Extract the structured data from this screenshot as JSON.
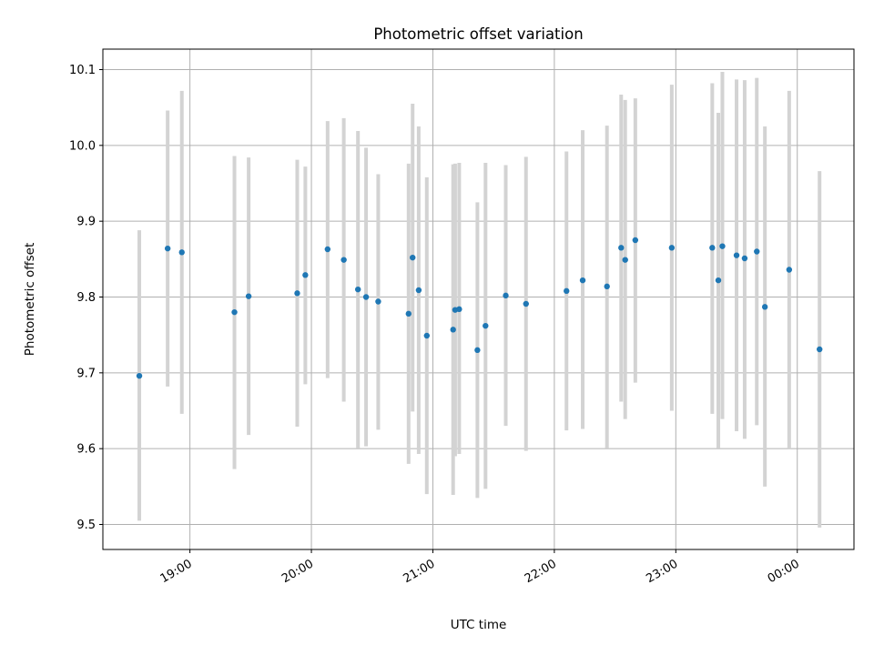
{
  "chart_data": {
    "type": "scatter",
    "title": "Photometric offset variation",
    "xlabel": "UTC time",
    "ylabel": "Photometric offset",
    "x_unit": "UTC time (HH:MM)",
    "xlim": [
      "18:17",
      "24:28"
    ],
    "ylim": [
      9.467,
      10.127
    ],
    "x_ticks": [
      {
        "t": "19:00",
        "label": "19:00"
      },
      {
        "t": "20:00",
        "label": "20:00"
      },
      {
        "t": "21:00",
        "label": "21:00"
      },
      {
        "t": "22:00",
        "label": "22:00"
      },
      {
        "t": "23:00",
        "label": "23:00"
      },
      {
        "t": "24:00",
        "label": "00:00"
      }
    ],
    "y_ticks": [
      9.5,
      9.6,
      9.7,
      9.8,
      9.9,
      10.0,
      10.1
    ],
    "y_tick_labels": [
      "9.5",
      "9.6",
      "9.7",
      "9.8",
      "9.9",
      "10.0",
      "10.1"
    ],
    "grid": true,
    "marker_color": "#1f77b4",
    "errorbar_color": "#d3d3d3",
    "points": [
      {
        "t": "18:35",
        "y": 9.696,
        "ylo": 9.505,
        "yhi": 9.888
      },
      {
        "t": "18:49",
        "y": 9.864,
        "ylo": 9.682,
        "yhi": 10.046
      },
      {
        "t": "18:56",
        "y": 9.859,
        "ylo": 9.646,
        "yhi": 10.072
      },
      {
        "t": "19:22",
        "y": 9.78,
        "ylo": 9.573,
        "yhi": 9.986
      },
      {
        "t": "19:29",
        "y": 9.801,
        "ylo": 9.618,
        "yhi": 9.984
      },
      {
        "t": "19:53",
        "y": 9.805,
        "ylo": 9.629,
        "yhi": 9.981
      },
      {
        "t": "19:57",
        "y": 9.829,
        "ylo": 9.685,
        "yhi": 9.972
      },
      {
        "t": "20:08",
        "y": 9.863,
        "ylo": 9.693,
        "yhi": 10.032
      },
      {
        "t": "20:16",
        "y": 9.849,
        "ylo": 9.662,
        "yhi": 10.036
      },
      {
        "t": "20:23",
        "y": 9.81,
        "ylo": 9.601,
        "yhi": 10.019
      },
      {
        "t": "20:27",
        "y": 9.8,
        "ylo": 9.603,
        "yhi": 9.997
      },
      {
        "t": "20:33",
        "y": 9.794,
        "ylo": 9.625,
        "yhi": 9.962
      },
      {
        "t": "20:48",
        "y": 9.778,
        "ylo": 9.58,
        "yhi": 9.976
      },
      {
        "t": "20:50",
        "y": 9.852,
        "ylo": 9.649,
        "yhi": 10.055
      },
      {
        "t": "20:53",
        "y": 9.809,
        "ylo": 9.593,
        "yhi": 10.025
      },
      {
        "t": "20:57",
        "y": 9.749,
        "ylo": 9.54,
        "yhi": 9.958
      },
      {
        "t": "21:10",
        "y": 9.757,
        "ylo": 9.539,
        "yhi": 9.975
      },
      {
        "t": "21:11",
        "y": 9.783,
        "ylo": 9.59,
        "yhi": 9.976
      },
      {
        "t": "21:13",
        "y": 9.784,
        "ylo": 9.593,
        "yhi": 9.977
      },
      {
        "t": "21:22",
        "y": 9.73,
        "ylo": 9.535,
        "yhi": 9.925
      },
      {
        "t": "21:26",
        "y": 9.762,
        "ylo": 9.547,
        "yhi": 9.977
      },
      {
        "t": "21:36",
        "y": 9.802,
        "ylo": 9.63,
        "yhi": 9.974
      },
      {
        "t": "21:46",
        "y": 9.791,
        "ylo": 9.597,
        "yhi": 9.985
      },
      {
        "t": "22:06",
        "y": 9.808,
        "ylo": 9.624,
        "yhi": 9.992
      },
      {
        "t": "22:14",
        "y": 9.822,
        "ylo": 9.626,
        "yhi": 10.02
      },
      {
        "t": "22:26",
        "y": 9.814,
        "ylo": 9.601,
        "yhi": 10.026
      },
      {
        "t": "22:33",
        "y": 9.865,
        "ylo": 9.662,
        "yhi": 10.067
      },
      {
        "t": "22:35",
        "y": 9.849,
        "ylo": 9.639,
        "yhi": 10.06
      },
      {
        "t": "22:40",
        "y": 9.875,
        "ylo": 9.687,
        "yhi": 10.062
      },
      {
        "t": "22:58",
        "y": 9.865,
        "ylo": 9.65,
        "yhi": 10.08
      },
      {
        "t": "23:18",
        "y": 9.865,
        "ylo": 9.646,
        "yhi": 10.082
      },
      {
        "t": "23:21",
        "y": 9.822,
        "ylo": 9.601,
        "yhi": 10.043
      },
      {
        "t": "23:23",
        "y": 9.867,
        "ylo": 9.639,
        "yhi": 10.097
      },
      {
        "t": "23:30",
        "y": 9.855,
        "ylo": 9.623,
        "yhi": 10.087
      },
      {
        "t": "23:34",
        "y": 9.851,
        "ylo": 9.613,
        "yhi": 10.086
      },
      {
        "t": "23:40",
        "y": 9.86,
        "ylo": 9.631,
        "yhi": 10.089
      },
      {
        "t": "23:44",
        "y": 9.787,
        "ylo": 9.55,
        "yhi": 10.025
      },
      {
        "t": "23:56",
        "y": 9.836,
        "ylo": 9.6,
        "yhi": 10.072
      },
      {
        "t": "24:11",
        "y": 9.731,
        "ylo": 9.496,
        "yhi": 9.966
      }
    ]
  }
}
